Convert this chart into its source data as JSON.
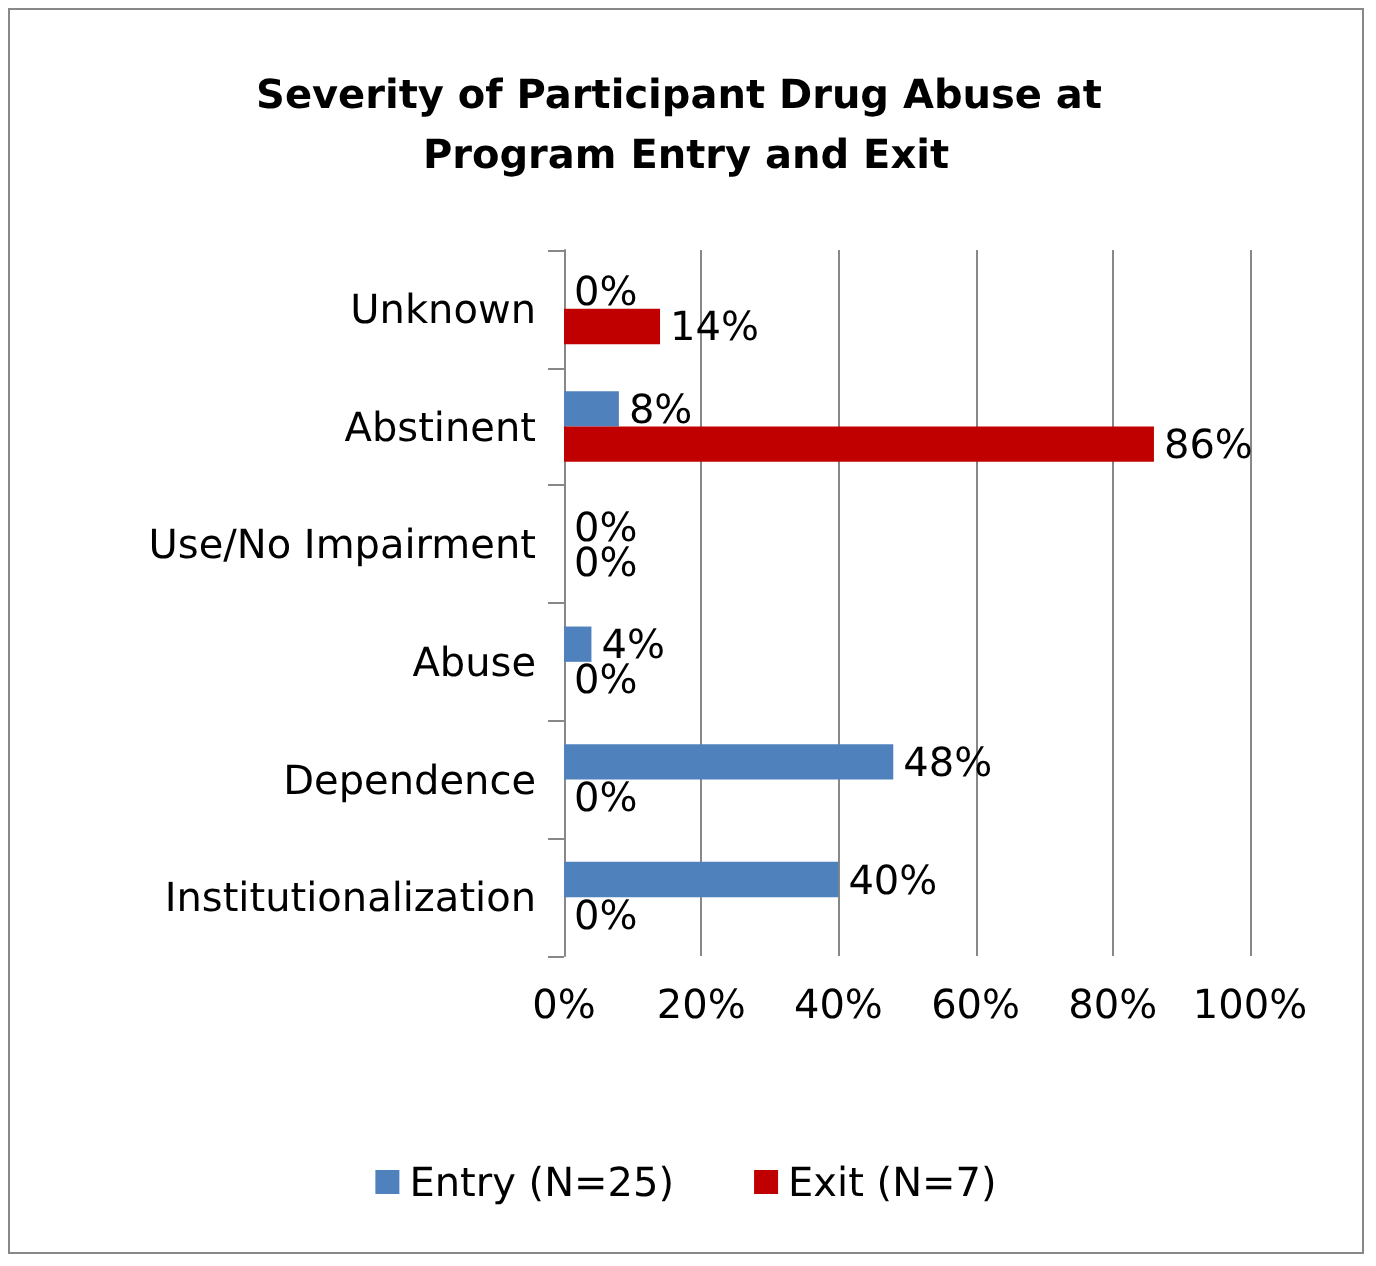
{
  "chart_data": {
    "type": "bar",
    "orientation": "horizontal",
    "title": "Severity of Participant Drug Abuse at Program Entry and Exit",
    "categories": [
      "Unknown",
      "Abstinent",
      "Use/No Impairment",
      "Abuse",
      "Dependence",
      "Institutionalization"
    ],
    "series": [
      {
        "name": "Entry (N=25)",
        "color": "#4f81bd",
        "values": [
          0,
          8,
          0,
          4,
          48,
          40
        ],
        "value_labels": [
          "0%",
          "8%",
          "0%",
          "4%",
          "48%",
          "40%"
        ]
      },
      {
        "name": "Exit (N=7)",
        "color": "#c00000",
        "values": [
          14,
          86,
          0,
          0,
          0,
          0
        ],
        "value_labels": [
          "14%",
          "86%",
          "0%",
          "0%",
          "0%",
          "0%"
        ]
      }
    ],
    "xlim": [
      0,
      100
    ],
    "xticks": [
      {
        "value": 0,
        "label": "0%"
      },
      {
        "value": 20,
        "label": "20%"
      },
      {
        "value": 40,
        "label": "40%"
      },
      {
        "value": 60,
        "label": "60%"
      },
      {
        "value": 80,
        "label": "80%"
      },
      {
        "value": 100,
        "label": "100%"
      }
    ],
    "grid": "x",
    "legend": "bottom"
  }
}
